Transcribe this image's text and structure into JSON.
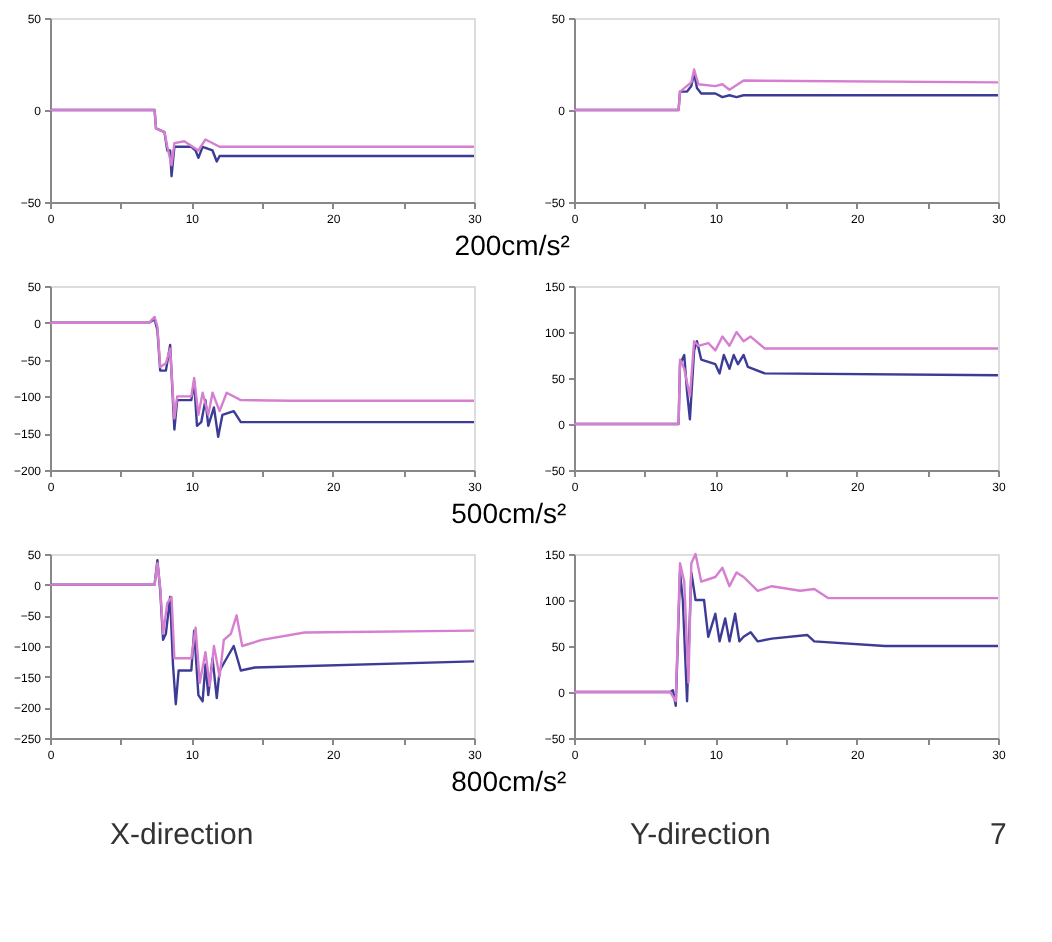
{
  "chart_data": [
    {
      "type": "line",
      "xlim": [
        0,
        30
      ],
      "xticks": [
        0,
        {
          "value": 5,
          "label": null
        },
        10,
        {
          "value": 15,
          "label": null
        },
        20,
        {
          "value": 25,
          "label": null
        },
        30
      ],
      "ylim": [
        -50,
        50
      ],
      "yticks": [
        -50,
        0,
        50
      ],
      "annotations": [
        "200cm/s²"
      ],
      "series": [
        {
          "color": "#3c3c96",
          "x": [
            0,
            7.4,
            7.5,
            8.1,
            8.3,
            8.5,
            8.6,
            8.8,
            10,
            10.3,
            10.5,
            10.8,
            11.5,
            11.8,
            12,
            13,
            30
          ],
          "values": [
            0,
            0,
            -10,
            -12,
            -22,
            -22,
            -36,
            -20,
            -20,
            -22,
            -26,
            -20,
            -22,
            -28,
            -25,
            -25,
            -25
          ]
        },
        {
          "color": "#d67fd0",
          "x": [
            0,
            7.4,
            7.5,
            8.1,
            8.3,
            8.6,
            8.8,
            9.5,
            10.5,
            11,
            12,
            30
          ],
          "values": [
            0,
            0,
            -10,
            -12,
            -20,
            -30,
            -18,
            -17,
            -22,
            -16,
            -20,
            -20
          ]
        }
      ]
    },
    {
      "type": "line",
      "xlim": [
        0,
        30
      ],
      "xticks": [
        0,
        {
          "value": 5,
          "label": null
        },
        10,
        {
          "value": 15,
          "label": null
        },
        20,
        {
          "value": 25,
          "label": null
        },
        30
      ],
      "ylim": [
        -50,
        50
      ],
      "yticks": [
        -50,
        0,
        50
      ],
      "series": [
        {
          "color": "#3c3c96",
          "x": [
            0,
            7.4,
            7.5,
            8,
            8.3,
            8.5,
            8.7,
            9,
            10,
            10.5,
            11,
            11.5,
            12,
            30
          ],
          "values": [
            0,
            0,
            10,
            10,
            13,
            20,
            12,
            9,
            9,
            7,
            8,
            7,
            8,
            8
          ]
        },
        {
          "color": "#d67fd0",
          "x": [
            0,
            7.4,
            7.5,
            8.3,
            8.5,
            8.8,
            10,
            10.5,
            11,
            12,
            30
          ],
          "values": [
            0,
            0,
            10,
            15,
            22,
            14,
            13,
            14,
            11,
            16,
            15
          ]
        }
      ]
    },
    {
      "type": "line",
      "xlim": [
        0,
        30
      ],
      "xticks": [
        0,
        {
          "value": 5,
          "label": null
        },
        10,
        {
          "value": 15,
          "label": null
        },
        20,
        {
          "value": 25,
          "label": null
        },
        30
      ],
      "ylim": [
        -200,
        50
      ],
      "yticks": [
        -200,
        -150,
        -100,
        -50,
        0,
        50
      ],
      "annotations": [
        "500cm/s²"
      ],
      "series": [
        {
          "color": "#3c3c96",
          "x": [
            0,
            7,
            7.4,
            7.6,
            7.8,
            8.2,
            8.5,
            8.8,
            9,
            10,
            10.2,
            10.4,
            10.7,
            11,
            11.2,
            11.6,
            11.9,
            12.2,
            13,
            13.5,
            30
          ],
          "values": [
            0,
            0,
            5,
            -10,
            -65,
            -65,
            -30,
            -145,
            -105,
            -105,
            -80,
            -140,
            -135,
            -105,
            -140,
            -115,
            -155,
            -125,
            -120,
            -135,
            -135
          ]
        },
        {
          "color": "#d67fd0",
          "x": [
            0,
            7,
            7.4,
            7.6,
            7.8,
            8.2,
            8.5,
            8.8,
            9,
            10,
            10.2,
            10.5,
            10.8,
            11.2,
            11.5,
            12,
            12.5,
            13.5,
            17,
            30
          ],
          "values": [
            0,
            0,
            8,
            -5,
            -60,
            -55,
            -35,
            -130,
            -100,
            -100,
            -75,
            -125,
            -95,
            -125,
            -95,
            -120,
            -95,
            -105,
            -106,
            -106
          ]
        }
      ]
    },
    {
      "type": "line",
      "xlim": [
        0,
        30
      ],
      "xticks": [
        0,
        {
          "value": 5,
          "label": null
        },
        10,
        {
          "value": 15,
          "label": null
        },
        20,
        {
          "value": 25,
          "label": null
        },
        30
      ],
      "ylim": [
        -50,
        150
      ],
      "yticks": [
        -50,
        0,
        50,
        100,
        150
      ],
      "series": [
        {
          "color": "#3c3c96",
          "x": [
            0,
            7.4,
            7.5,
            7.8,
            8,
            8.2,
            8.5,
            8.7,
            9,
            10,
            10.3,
            10.6,
            11,
            11.3,
            11.6,
            12,
            12.3,
            13.5,
            30
          ],
          "values": [
            0,
            0,
            65,
            75,
            35,
            5,
            80,
            90,
            70,
            65,
            55,
            75,
            60,
            75,
            65,
            75,
            62,
            55,
            53
          ]
        },
        {
          "color": "#d67fd0",
          "x": [
            0,
            7.4,
            7.5,
            7.8,
            8.2,
            8.5,
            8.8,
            9.5,
            10,
            10.5,
            11,
            11.5,
            12,
            12.5,
            13.5,
            30
          ],
          "values": [
            0,
            0,
            70,
            60,
            30,
            90,
            85,
            88,
            80,
            95,
            85,
            100,
            90,
            95,
            82,
            82
          ]
        }
      ]
    },
    {
      "type": "line",
      "xlim": [
        0,
        30
      ],
      "xticks": [
        0,
        {
          "value": 5,
          "label": null
        },
        10,
        {
          "value": 15,
          "label": null
        },
        20,
        {
          "value": 25,
          "label": null
        },
        30
      ],
      "ylim": [
        -250,
        50
      ],
      "yticks": [
        -250,
        -200,
        -150,
        -100,
        -50,
        0,
        50
      ],
      "annotations": [
        "800cm/s²",
        "X-direction"
      ],
      "series": [
        {
          "color": "#3c3c96",
          "x": [
            0,
            7.4,
            7.6,
            7.8,
            8,
            8.2,
            8.5,
            8.7,
            8.9,
            9.1,
            10,
            10.2,
            10.5,
            10.8,
            11,
            11.2,
            11.5,
            11.8,
            12,
            12.5,
            13,
            13.5,
            14.5,
            30
          ],
          "values": [
            0,
            0,
            40,
            -10,
            -90,
            -80,
            -20,
            -130,
            -195,
            -140,
            -140,
            -75,
            -180,
            -190,
            -130,
            -180,
            -120,
            -185,
            -140,
            -120,
            -100,
            -140,
            -135,
            -125
          ]
        },
        {
          "color": "#d67fd0",
          "x": [
            0,
            7.4,
            7.6,
            7.8,
            8,
            8.3,
            8.6,
            8.8,
            9.2,
            10,
            10.3,
            10.6,
            11,
            11.3,
            11.6,
            12,
            12.3,
            12.8,
            13.2,
            13.6,
            15,
            18,
            30
          ],
          "values": [
            0,
            0,
            35,
            -5,
            -80,
            -30,
            -20,
            -120,
            -120,
            -120,
            -70,
            -160,
            -110,
            -165,
            -100,
            -150,
            -90,
            -80,
            -50,
            -100,
            -90,
            -78,
            -75
          ]
        }
      ]
    },
    {
      "type": "line",
      "xlim": [
        0,
        30
      ],
      "xticks": [
        0,
        {
          "value": 5,
          "label": null
        },
        10,
        {
          "value": 15,
          "label": null
        },
        20,
        {
          "value": 25,
          "label": null
        },
        30
      ],
      "ylim": [
        -50,
        150
      ],
      "yticks": [
        -50,
        0,
        50,
        100,
        150
      ],
      "annotations": [
        "Y-direction",
        "7"
      ],
      "series": [
        {
          "color": "#3c3c96",
          "x": [
            0,
            6.8,
            7,
            7.2,
            7.5,
            7.7,
            8,
            8.3,
            8.6,
            9.2,
            9.5,
            10,
            10.3,
            10.7,
            11,
            11.4,
            11.7,
            12,
            12.5,
            13,
            14,
            16.5,
            17,
            22,
            30
          ],
          "values": [
            0,
            0,
            2,
            -15,
            130,
            100,
            -10,
            130,
            100,
            100,
            60,
            85,
            55,
            80,
            55,
            85,
            55,
            60,
            65,
            55,
            58,
            62,
            55,
            50,
            50
          ]
        },
        {
          "color": "#d67fd0",
          "x": [
            0,
            6.8,
            7.2,
            7.5,
            7.8,
            8.1,
            8.3,
            8.6,
            9,
            10,
            10.5,
            11,
            11.5,
            12,
            13,
            14,
            16,
            17,
            18,
            30
          ],
          "values": [
            0,
            0,
            -10,
            140,
            120,
            10,
            140,
            150,
            120,
            125,
            135,
            115,
            130,
            125,
            110,
            115,
            110,
            112,
            102,
            102
          ]
        }
      ]
    }
  ]
}
